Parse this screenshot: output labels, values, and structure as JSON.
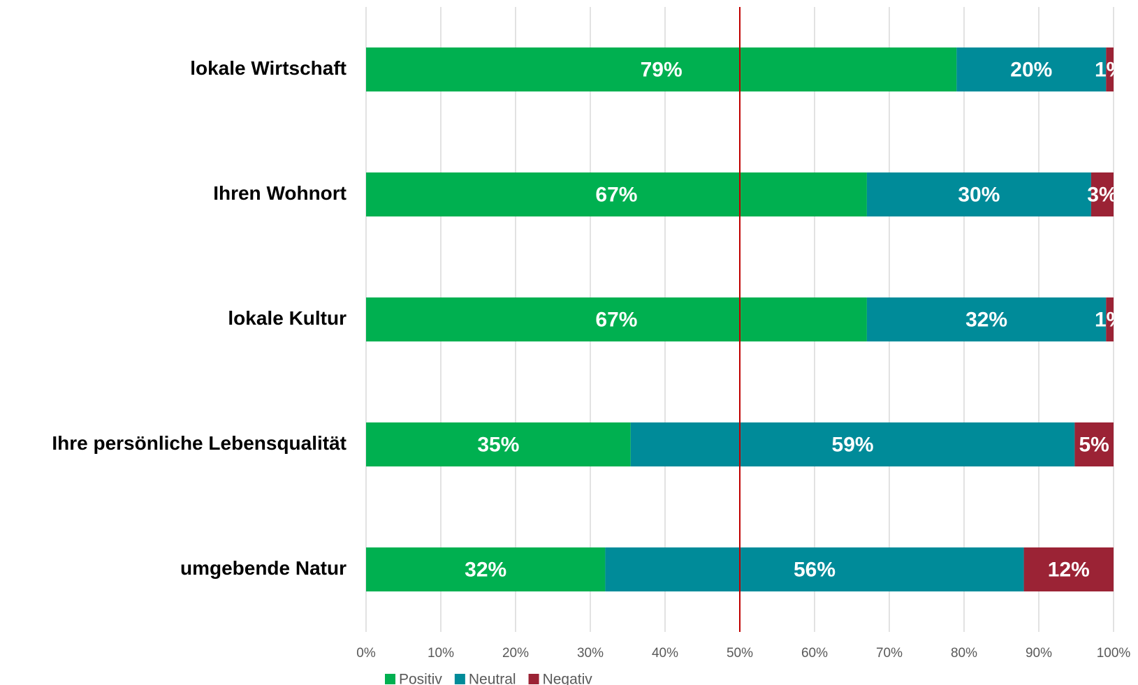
{
  "chart_data": {
    "type": "stacked_bar_horizontal",
    "categories": [
      "lokale Wirtschaft",
      "Ihren Wohnort",
      "lokale Kultur",
      "Ihre persönliche Lebensqualität",
      "umgebende Natur"
    ],
    "series": [
      {
        "name": "Positiv",
        "color": "#00b050",
        "values": [
          79,
          67,
          67,
          35.4,
          32
        ],
        "value_labels": [
          "79%",
          "67%",
          "67%",
          "35%",
          "32%"
        ]
      },
      {
        "name": "Neutral",
        "color": "#008b99",
        "values": [
          20,
          30,
          32,
          59.4,
          56
        ],
        "value_labels": [
          "20%",
          "30%",
          "32%",
          "59%",
          "56%"
        ]
      },
      {
        "name": "Negativ",
        "color": "#9b2335",
        "values": [
          1,
          3,
          1,
          5.2,
          12
        ],
        "value_labels": [
          "1%",
          "3%",
          "1%",
          "5%",
          "12%"
        ]
      }
    ],
    "xlim": [
      0,
      100
    ],
    "xticks": [
      {
        "value": 0,
        "label": "0%"
      },
      {
        "value": 10,
        "label": "10%"
      },
      {
        "value": 20,
        "label": "20%"
      },
      {
        "value": 30,
        "label": "30%"
      },
      {
        "value": 40,
        "label": "40%"
      },
      {
        "value": 50,
        "label": "50%"
      },
      {
        "value": 60,
        "label": "60%"
      },
      {
        "value": 70,
        "label": "70%"
      },
      {
        "value": 80,
        "label": "80%"
      },
      {
        "value": 90,
        "label": "90%"
      },
      {
        "value": 100,
        "label": "100%"
      }
    ],
    "grid": true,
    "reference_line": {
      "value": 50,
      "color": "#c00000"
    },
    "legend": "bottom"
  }
}
